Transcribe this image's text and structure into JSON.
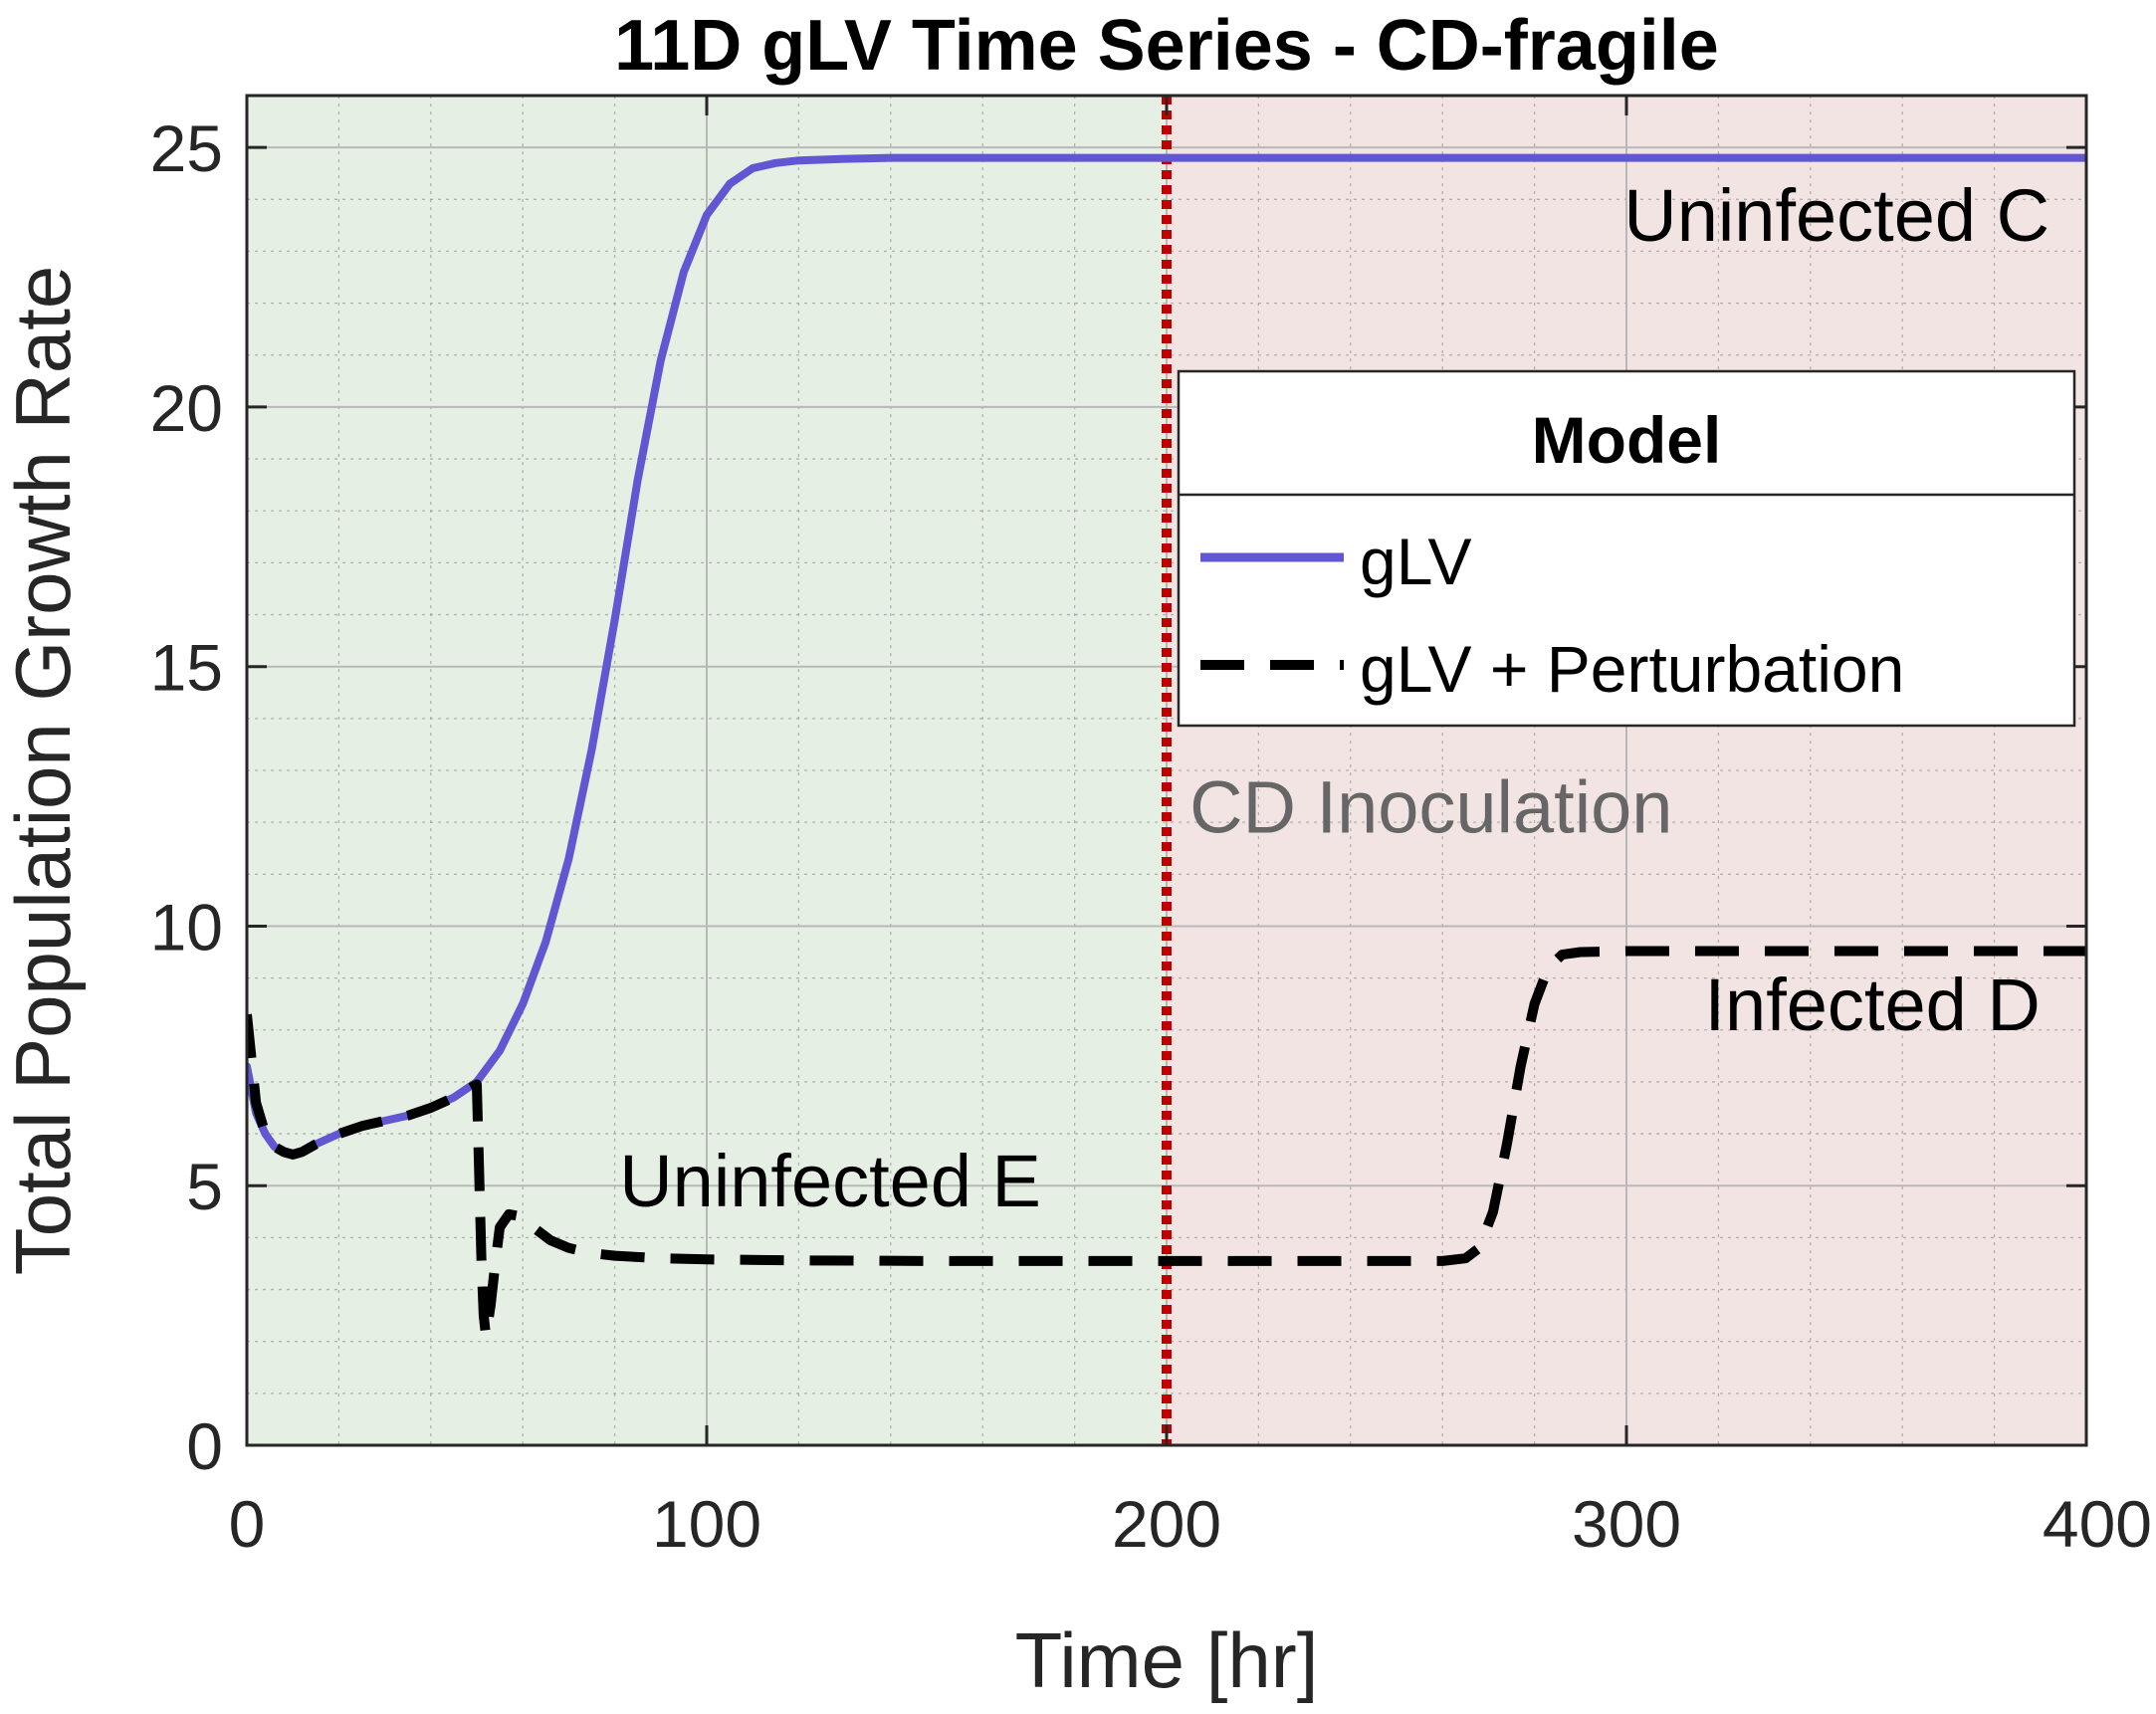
{
  "chart_data": {
    "type": "line",
    "title": "11D gLV Time Series - CD-fragile",
    "xlabel": "Time [hr]",
    "ylabel": "Total Population Growth Rate",
    "xlim": [
      0,
      400
    ],
    "ylim": [
      0,
      26
    ],
    "xticks": [
      0,
      100,
      200,
      300,
      400
    ],
    "yticks": [
      0,
      5,
      10,
      15,
      20,
      25
    ],
    "grid": true,
    "minor_grid": true,
    "legend": {
      "title": "Model",
      "placement": "center-right",
      "entries": [
        "gLV",
        "gLV + Perturbation"
      ]
    },
    "regions": [
      {
        "x0": 0,
        "x1": 200,
        "color": "#e5efe4"
      },
      {
        "x0": 200,
        "x1": 400,
        "color": "#f2e4e3"
      }
    ],
    "vlines": [
      {
        "x": 200,
        "color": "#c00000"
      }
    ],
    "annotations": [
      {
        "text": "Uninfected C",
        "x": 392,
        "y": 23.2,
        "anchor": "end",
        "style": "dark"
      },
      {
        "text": "Uninfected E",
        "x": 81,
        "y": 4.6,
        "anchor": "start",
        "style": "dark"
      },
      {
        "text": "Infected D",
        "x": 390,
        "y": 8.0,
        "anchor": "end",
        "style": "dark"
      },
      {
        "text": "CD Inoculation",
        "x": 205,
        "y": 11.8,
        "anchor": "start",
        "style": "gray"
      }
    ],
    "series": [
      {
        "name": "gLV",
        "color": "#6257d3",
        "dash": "solid",
        "x": [
          0,
          2,
          4,
          6,
          8,
          10,
          12,
          15,
          20,
          25,
          30,
          35,
          40,
          45,
          50,
          55,
          60,
          65,
          70,
          75,
          80,
          85,
          90,
          95,
          100,
          105,
          110,
          115,
          120,
          130,
          140,
          160,
          200,
          250,
          300,
          350,
          400
        ],
        "y": [
          7.3,
          6.4,
          6.0,
          5.75,
          5.65,
          5.6,
          5.65,
          5.8,
          6.0,
          6.15,
          6.25,
          6.35,
          6.5,
          6.7,
          7.0,
          7.6,
          8.5,
          9.7,
          11.3,
          13.4,
          15.9,
          18.6,
          20.9,
          22.6,
          23.7,
          24.3,
          24.6,
          24.7,
          24.75,
          24.78,
          24.8,
          24.8,
          24.8,
          24.8,
          24.8,
          24.8,
          24.8
        ]
      },
      {
        "name": "gLV + Perturbation",
        "color": "#000000",
        "dash": "dashed",
        "x": [
          0,
          2,
          4,
          6,
          8,
          10,
          12,
          15,
          20,
          25,
          30,
          35,
          40,
          45,
          50,
          50.5,
          51,
          51.5,
          52,
          53,
          54,
          55,
          57,
          60,
          63,
          66,
          70,
          75,
          80,
          90,
          100,
          120,
          150,
          200,
          230,
          260,
          265,
          268,
          271,
          274,
          277,
          280,
          283,
          286,
          290,
          300,
          320,
          350,
          400
        ],
        "y": [
          8.3,
          6.6,
          6.0,
          5.75,
          5.65,
          5.6,
          5.65,
          5.8,
          6.0,
          6.15,
          6.25,
          6.35,
          6.5,
          6.7,
          6.95,
          5.3,
          3.6,
          2.5,
          2.1,
          2.7,
          3.5,
          4.2,
          4.45,
          4.4,
          4.15,
          3.95,
          3.8,
          3.7,
          3.65,
          3.6,
          3.58,
          3.56,
          3.55,
          3.55,
          3.55,
          3.55,
          3.6,
          3.8,
          4.5,
          5.8,
          7.3,
          8.5,
          9.2,
          9.45,
          9.5,
          9.52,
          9.52,
          9.52,
          9.52
        ]
      }
    ]
  }
}
